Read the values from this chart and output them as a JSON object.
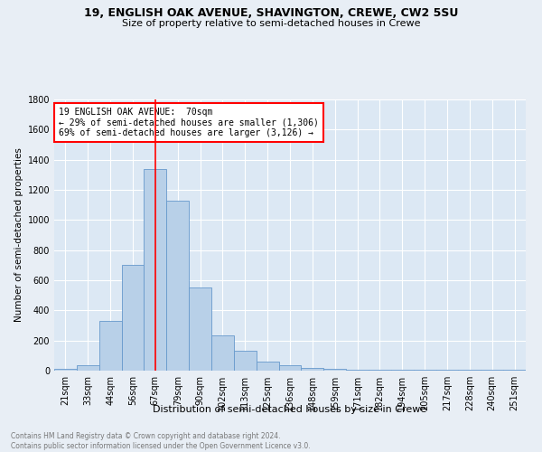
{
  "title1": "19, ENGLISH OAK AVENUE, SHAVINGTON, CREWE, CW2 5SU",
  "title2": "Size of property relative to semi-detached houses in Crewe",
  "xlabel": "Distribution of semi-detached houses by size in Crewe",
  "ylabel": "Number of semi-detached properties",
  "footnote1": "Contains HM Land Registry data © Crown copyright and database right 2024.",
  "footnote2": "Contains public sector information licensed under the Open Government Licence v3.0.",
  "bar_labels": [
    "21sqm",
    "33sqm",
    "44sqm",
    "56sqm",
    "67sqm",
    "79sqm",
    "90sqm",
    "102sqm",
    "113sqm",
    "125sqm",
    "136sqm",
    "148sqm",
    "159sqm",
    "171sqm",
    "182sqm",
    "194sqm",
    "205sqm",
    "217sqm",
    "228sqm",
    "240sqm",
    "251sqm"
  ],
  "bar_values": [
    15,
    35,
    330,
    700,
    1340,
    1130,
    550,
    235,
    130,
    60,
    35,
    20,
    15,
    5,
    5,
    5,
    5,
    5,
    5,
    5,
    5
  ],
  "bar_color": "#b8d0e8",
  "bar_edge_color": "#6699cc",
  "vline_x_index": 4,
  "vline_color": "red",
  "annotation_text": "19 ENGLISH OAK AVENUE:  70sqm\n← 29% of semi-detached houses are smaller (1,306)\n69% of semi-detached houses are larger (3,126) →",
  "annotation_box_color": "white",
  "annotation_box_edgecolor": "red",
  "ylim": [
    0,
    1800
  ],
  "yticks": [
    0,
    200,
    400,
    600,
    800,
    1000,
    1200,
    1400,
    1600,
    1800
  ],
  "background_color": "#e8eef5",
  "plot_background_color": "#dce8f4",
  "grid_color": "#ffffff",
  "title1_fontsize": 9,
  "title2_fontsize": 8,
  "xlabel_fontsize": 8,
  "ylabel_fontsize": 7.5,
  "tick_fontsize": 7,
  "annotation_fontsize": 7,
  "footnote_fontsize": 5.5,
  "footnote_color": "#777777"
}
